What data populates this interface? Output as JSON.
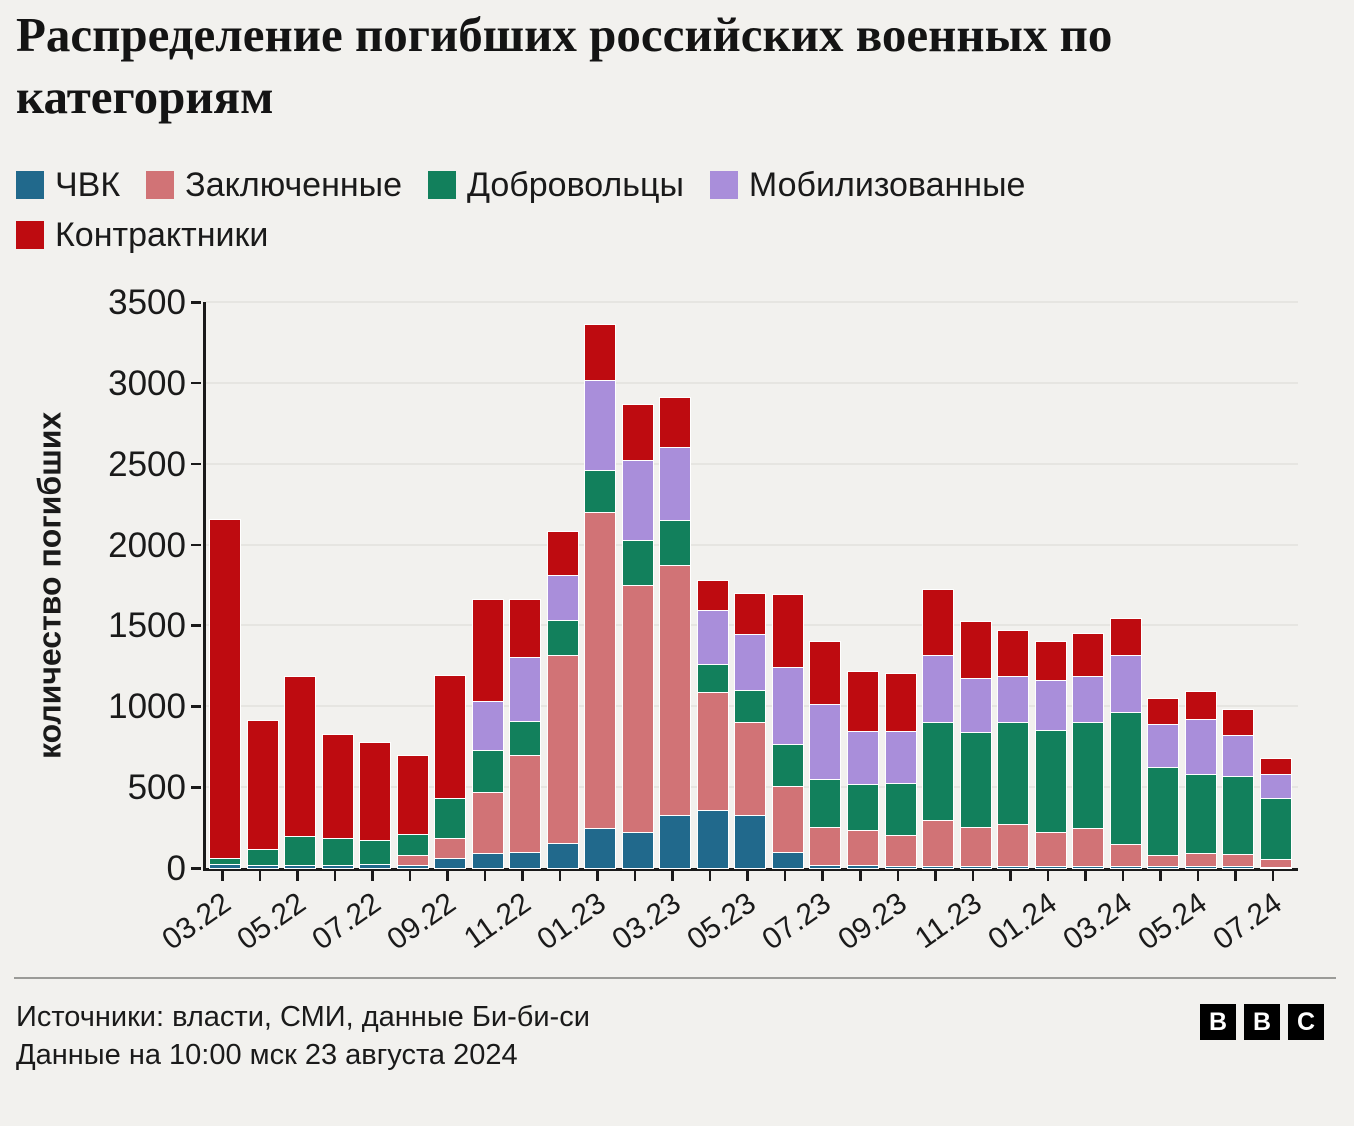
{
  "title": "Распределение погибших российских военных по категориям",
  "legend": [
    {
      "label": "ЧВК",
      "color": "#21698C"
    },
    {
      "label": "Заключенные",
      "color": "#D17376"
    },
    {
      "label": "Добровольцы",
      "color": "#12805C"
    },
    {
      "label": "Мобилизованные",
      "color": "#A98EDA"
    },
    {
      "label": "Контрактники",
      "color": "#BE0B10"
    }
  ],
  "y_axis": {
    "title": "количество погибших",
    "ticks": [
      0,
      500,
      1000,
      1500,
      2000,
      2500,
      3000,
      3500
    ],
    "max": 3500
  },
  "chart_data": {
    "type": "bar",
    "stacked": true,
    "grid": "horizontal",
    "ylim": [
      0,
      3500
    ],
    "ylabel": "количество погибших",
    "categories": [
      "03.22",
      "04.22",
      "05.22",
      "06.22",
      "07.22",
      "08.22",
      "09.22",
      "10.22",
      "11.22",
      "12.22",
      "01.23",
      "02.23",
      "03.23",
      "04.23",
      "05.23",
      "06.23",
      "07.23",
      "08.23",
      "09.23",
      "10.23",
      "11.23",
      "12.23",
      "01.24",
      "02.24",
      "03.24",
      "04.24",
      "05.24",
      "06.24",
      "07.24"
    ],
    "x_tick_labels_shown": [
      "03.22",
      "05.22",
      "07.22",
      "09.22",
      "11.22",
      "01.23",
      "03.23",
      "05.23",
      "07.23",
      "09.23",
      "11.23",
      "01.24",
      "03.24",
      "05.24",
      "07.24"
    ],
    "series": [
      {
        "name": "ЧВК",
        "color": "#21698C",
        "values": [
          25,
          20,
          20,
          20,
          25,
          20,
          60,
          90,
          100,
          155,
          250,
          225,
          330,
          360,
          330,
          100,
          20,
          20,
          15,
          15,
          10,
          10,
          10,
          10,
          10,
          10,
          10,
          10,
          5
        ]
      },
      {
        "name": "Заключенные",
        "color": "#D17376",
        "values": [
          0,
          0,
          0,
          0,
          0,
          60,
          125,
          380,
          600,
          1160,
          1950,
          1525,
          1545,
          730,
          575,
          405,
          235,
          215,
          190,
          285,
          245,
          260,
          215,
          235,
          140,
          70,
          80,
          75,
          50
        ]
      },
      {
        "name": "Добровольцы",
        "color": "#12805C",
        "values": [
          40,
          100,
          180,
          165,
          150,
          130,
          245,
          260,
          210,
          220,
          260,
          280,
          275,
          170,
          195,
          260,
          295,
          285,
          320,
          605,
          585,
          630,
          630,
          660,
          815,
          545,
          490,
          485,
          380
        ]
      },
      {
        "name": "Мобилизованные",
        "color": "#A98EDA",
        "values": [
          0,
          0,
          0,
          0,
          0,
          0,
          0,
          300,
          395,
          280,
          560,
          490,
          455,
          335,
          350,
          480,
          465,
          325,
          320,
          410,
          335,
          290,
          305,
          285,
          350,
          265,
          340,
          250,
          145
        ]
      },
      {
        "name": "Контрактники",
        "color": "#BE0B10",
        "values": [
          2090,
          790,
          980,
          635,
          595,
          480,
          760,
          630,
          355,
          260,
          340,
          345,
          300,
          180,
          245,
          445,
          385,
          365,
          355,
          405,
          345,
          275,
          240,
          255,
          225,
          155,
          170,
          155,
          95
        ]
      }
    ]
  },
  "footer": {
    "source_line": "Источники: власти, СМИ, данные Би-би-си",
    "data_line": "Данные на 10:00 мск 23 августа 2024",
    "logo_letters": [
      "B",
      "B",
      "C"
    ]
  }
}
